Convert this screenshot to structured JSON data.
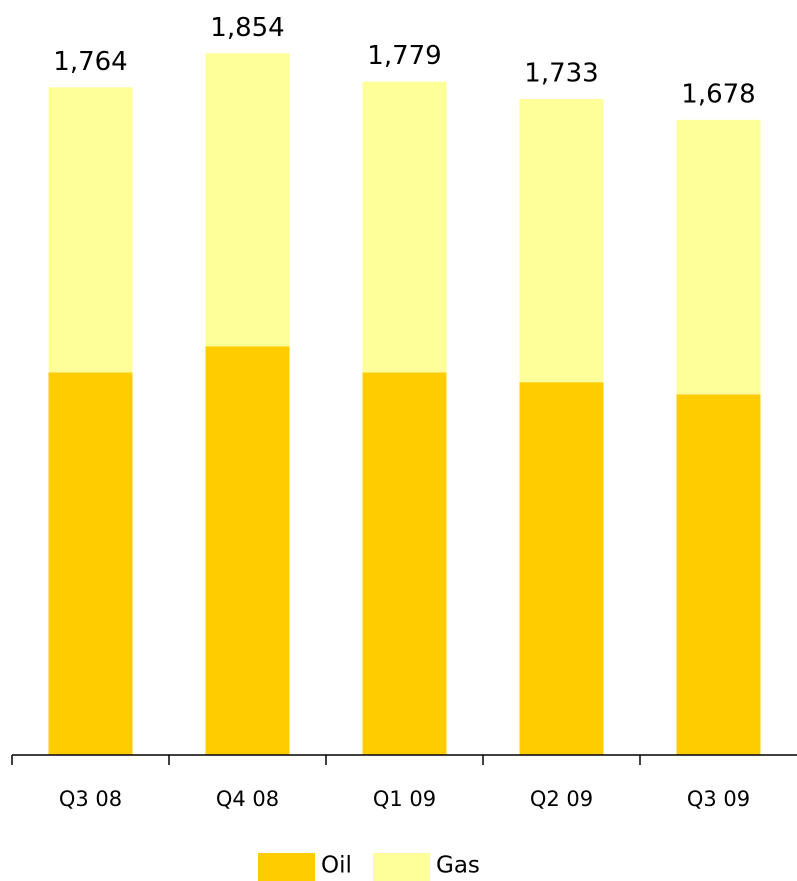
{
  "chart_data": {
    "type": "stacked_bar",
    "categories": [
      "Q3 08",
      "Q4 08",
      "Q1 09",
      "Q2 09",
      "Q3 09"
    ],
    "series": [
      {
        "name": "Oil",
        "color": "#ffcc00",
        "values": [
          1011,
          1080,
          1011,
          985,
          953
        ]
      },
      {
        "name": "Gas",
        "color": "#ffff99",
        "values": [
          753,
          774,
          768,
          748,
          725
        ]
      }
    ],
    "totals": [
      1764,
      1854,
      1779,
      1733,
      1678
    ],
    "total_labels": [
      "1,764",
      "1,854",
      "1,779",
      "1,733",
      "1,678"
    ],
    "ylim": [
      0,
      2000
    ]
  }
}
